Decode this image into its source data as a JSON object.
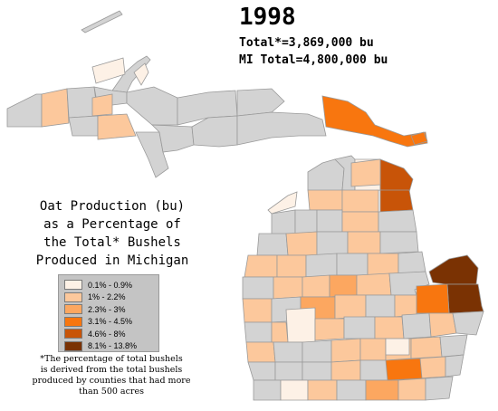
{
  "header": {
    "year": "1998",
    "total_line": "Total*=3,869,000 bu",
    "mi_total_line": "MI Total=4,800,000 bu"
  },
  "title_lines": [
    "Oat Production (bu)",
    "as a Percentage of",
    "the Total* Bushels",
    "Produced in Michigan"
  ],
  "legend": [
    {
      "label": "0.1% - 0.9%",
      "color": "#fdf1e6"
    },
    {
      "label": "1% - 2.2%",
      "color": "#fcc89c"
    },
    {
      "label": "2.3% - 3%",
      "color": "#fca760"
    },
    {
      "label": "3.1% - 4.5%",
      "color": "#f8760f"
    },
    {
      "label": "4.6% - 8%",
      "color": "#c85408"
    },
    {
      "label": "8.1% - 13.8%",
      "color": "#7a3203"
    }
  ],
  "no_data_color": "#d3d3d3",
  "footnote_lines": [
    "*The percentage of total bushels",
    "is derived from the total bushels",
    "produced by counties that had more",
    "than 500 acres"
  ]
}
